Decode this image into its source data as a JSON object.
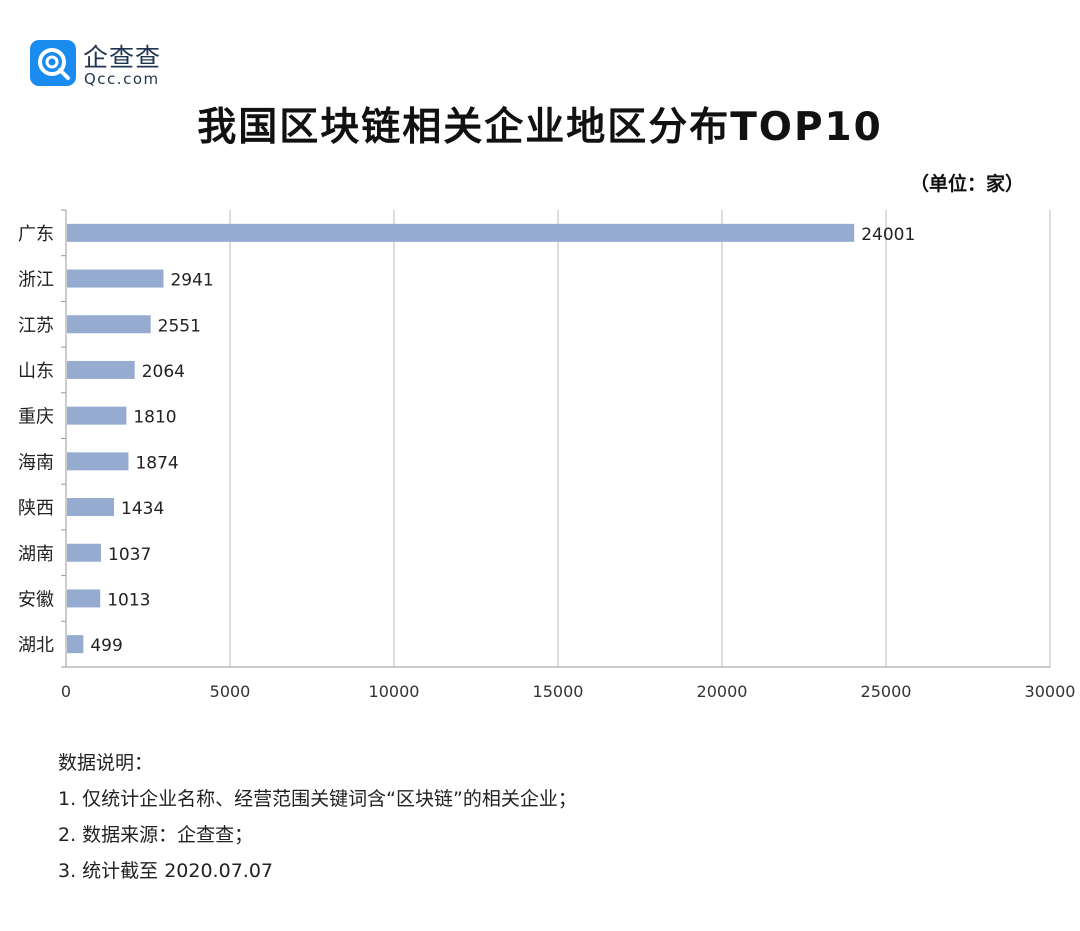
{
  "logo": {
    "name_cn": "企查查",
    "name_en": "Qcc.com",
    "brand_color": "#1a8cf0"
  },
  "chart_data": {
    "type": "bar",
    "orientation": "horizontal",
    "title": "我国区块链相关企业地区分布TOP10",
    "unit_label": "（单位：家）",
    "categories": [
      "广东",
      "浙江",
      "江苏",
      "山东",
      "重庆",
      "海南",
      "陕西",
      "湖南",
      "安徽",
      "湖北"
    ],
    "values": [
      24001,
      2941,
      2551,
      2064,
      1810,
      1874,
      1434,
      1037,
      1013,
      499
    ],
    "x_ticks": [
      0,
      5000,
      10000,
      15000,
      20000,
      25000,
      30000
    ],
    "xlim": [
      0,
      30000
    ],
    "grid": true,
    "bar_color": "#95abd0",
    "data_labels": true
  },
  "notes": {
    "heading": "数据说明：",
    "items": [
      "1. 仅统计企业名称、经营范围关键词含“区块链”的相关企业；",
      "2. 数据来源：企查查；",
      "3. 统计截至 2020.07.07"
    ]
  }
}
